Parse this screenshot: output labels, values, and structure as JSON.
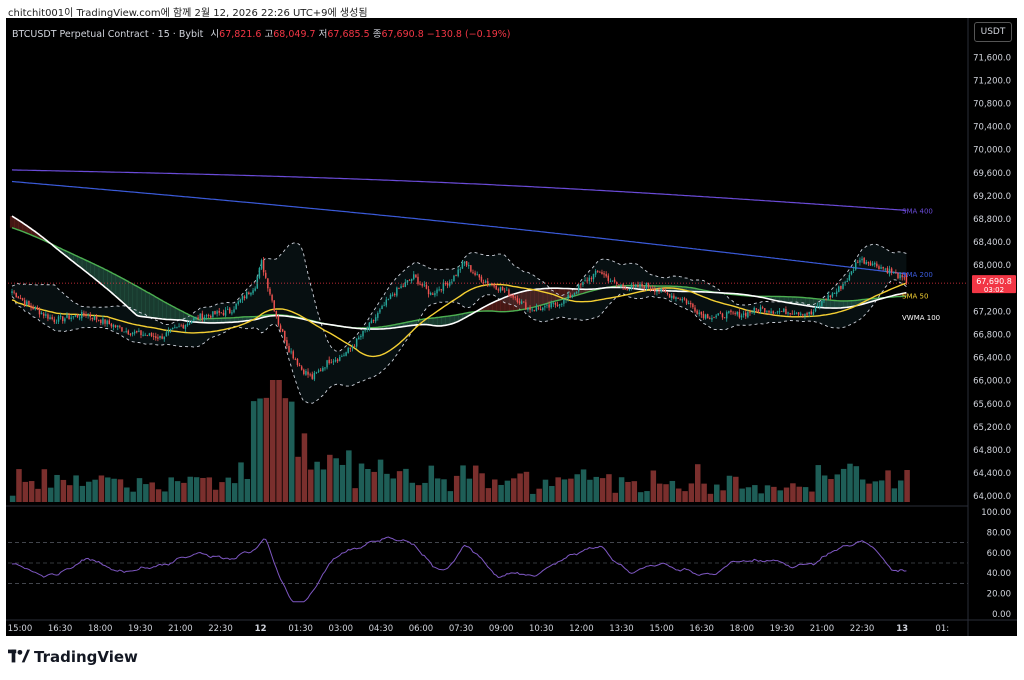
{
  "caption": "chitchit001이 TradingView.com에 함께 2월 12, 2026 22:26 UTC+9에 생성됨",
  "header": {
    "symbol": "BTCUSDT Perpetual Contract · 15 · Bybit",
    "open_label": "시",
    "open": "67,821.6",
    "high_label": "고",
    "high": "68,049.7",
    "low_label": "저",
    "low": "67,685.5",
    "close_label": "종",
    "close": "67,690.8",
    "change": "−130.8 (−0.19%)"
  },
  "currency_button": "USDT",
  "brand": "TradingView",
  "colors": {
    "up": "#26a69a",
    "down": "#ef5350",
    "volume_up": "#1e5e57",
    "volume_down": "#7a2f2d",
    "sma400": "#6a4bd8",
    "sma200": "#3b5bdb",
    "sma50": "#f5d033",
    "vwma100": "#ffffff",
    "green_ma": "#4caf50",
    "rsi": "#7e57c2",
    "cloud_bear": "#7d2a25",
    "cloud_bull": "#2e6b55",
    "price_tag": "#f23645"
  },
  "chart_data": {
    "type": "candlestick",
    "symbol": "BTCUSDT Perpetual Contract",
    "interval": "15",
    "exchange": "Bybit",
    "y_ticks": [
      64000,
      64400,
      64800,
      65200,
      65600,
      66000,
      66400,
      66800,
      67200,
      67600,
      68000,
      68400,
      68800,
      69200,
      69600,
      70000,
      70400,
      70800,
      71200,
      71600
    ],
    "y_tick_labels": [
      "64,000.0",
      "64,400.0",
      "64,800.0",
      "65,200.0",
      "65,600.0",
      "66,000.0",
      "66,400.0",
      "66,800.0",
      "67,200.0",
      "67,600.0",
      "68,000.0",
      "68,400.0",
      "68,800.0",
      "69,200.0",
      "69,600.0",
      "70,000.0",
      "70,400.0",
      "70,800.0",
      "71,200.0",
      "71,600.0"
    ],
    "ylim": [
      63900,
      71900
    ],
    "x_tick_labels": [
      "15:00",
      "16:30",
      "18:00",
      "19:30",
      "21:00",
      "22:30",
      "12",
      "01:30",
      "03:00",
      "04:30",
      "06:00",
      "07:30",
      "09:00",
      "10:30",
      "12:00",
      "13:30",
      "15:00",
      "16:30",
      "18:00",
      "19:30",
      "21:00",
      "22:30",
      "13",
      "01:"
    ],
    "last_price": "67,690.8",
    "countdown": "03:02",
    "close_path": [
      [
        0,
        67550
      ],
      [
        8,
        67300
      ],
      [
        20,
        67050
      ],
      [
        35,
        67150
      ],
      [
        55,
        66850
      ],
      [
        70,
        66750
      ],
      [
        88,
        67100
      ],
      [
        103,
        67200
      ],
      [
        115,
        67650
      ],
      [
        118,
        68050
      ],
      [
        121,
        67650
      ],
      [
        126,
        67000
      ],
      [
        131,
        66550
      ],
      [
        137,
        66200
      ],
      [
        142,
        66050
      ],
      [
        150,
        66350
      ],
      [
        155,
        66400
      ],
      [
        160,
        66550
      ],
      [
        170,
        67000
      ],
      [
        180,
        67500
      ],
      [
        190,
        67800
      ],
      [
        198,
        67500
      ],
      [
        208,
        67750
      ],
      [
        214,
        68050
      ],
      [
        220,
        67800
      ],
      [
        228,
        67650
      ],
      [
        238,
        67450
      ],
      [
        244,
        67250
      ],
      [
        252,
        67250
      ],
      [
        262,
        67400
      ],
      [
        272,
        67750
      ],
      [
        278,
        67900
      ],
      [
        284,
        67700
      ],
      [
        292,
        67600
      ],
      [
        300,
        67650
      ],
      [
        310,
        67500
      ],
      [
        318,
        67400
      ],
      [
        326,
        67150
      ],
      [
        332,
        67100
      ],
      [
        338,
        67150
      ],
      [
        346,
        67150
      ],
      [
        354,
        67250
      ],
      [
        362,
        67200
      ],
      [
        370,
        67200
      ],
      [
        378,
        67150
      ],
      [
        384,
        67400
      ],
      [
        390,
        67550
      ],
      [
        396,
        67800
      ],
      [
        400,
        68100
      ],
      [
        406,
        68050
      ],
      [
        412,
        67950
      ],
      [
        418,
        67850
      ],
      [
        423,
        67700
      ]
    ],
    "candle_count": 424,
    "volume_heights": [
      0.15,
      0.35,
      0.15,
      0.25,
      0.1
    ],
    "moving_averages": [
      {
        "name": "SMA 400",
        "start": 69650,
        "end": 68950
      },
      {
        "name": "SMA 200",
        "start": 69450,
        "end": 67850
      },
      {
        "name": "SMA 50",
        "start": 67150,
        "end": 67500
      },
      {
        "name": "VWMA 100",
        "start": 68850,
        "end": 67100
      }
    ],
    "rsi": {
      "ticks": [
        0,
        20,
        40,
        60,
        80,
        100
      ],
      "tick_labels": [
        "0.00",
        "20.00",
        "40.00",
        "60.00",
        "80.00",
        "100.00"
      ],
      "levels": [
        30,
        50,
        70
      ],
      "range": [
        0,
        100
      ]
    }
  }
}
